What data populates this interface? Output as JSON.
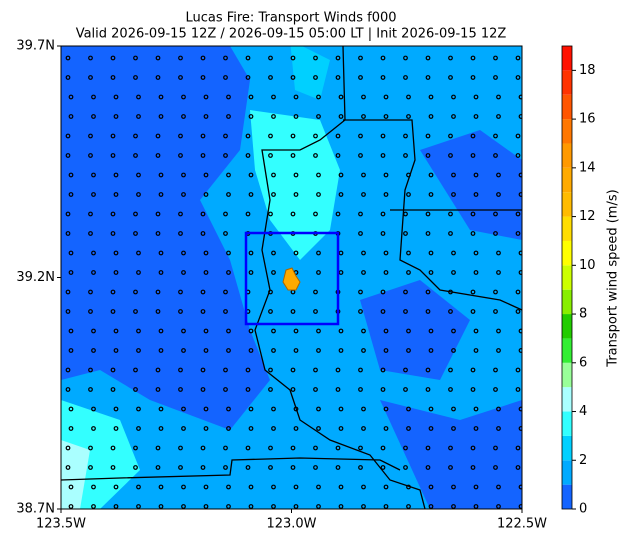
{
  "title": "Lucas Fire: Transport Winds f000",
  "subtitle": "Valid 2026-09-15 12Z / 2026-09-15 05:00 LT | Init 2026-09-15 12Z",
  "map": {
    "xlim": [
      -123.5,
      -122.5
    ],
    "ylim": [
      38.7,
      39.7
    ],
    "xticks": [
      {
        "value": -123.5,
        "label": "123.5W"
      },
      {
        "value": -123.0,
        "label": "123.0W"
      },
      {
        "value": -122.5,
        "label": "122.5W"
      }
    ],
    "yticks": [
      {
        "value": 38.7,
        "label": "38.7N"
      },
      {
        "value": 39.2,
        "label": "39.2N"
      },
      {
        "value": 39.7,
        "label": "39.7N"
      }
    ]
  },
  "colorbar": {
    "label": "Transport wind speed (m/s)",
    "lim": [
      0,
      19
    ],
    "ticks": [
      0,
      2,
      4,
      6,
      8,
      10,
      12,
      14,
      16,
      18
    ],
    "levels": [
      0,
      1,
      2,
      3,
      4,
      5,
      6,
      7,
      8,
      9,
      10,
      11,
      12,
      13,
      14,
      15,
      16,
      17,
      18,
      19
    ],
    "colors": [
      "#1464ff",
      "#00aaff",
      "#00d0ff",
      "#33ffff",
      "#aaffff",
      "#99ff99",
      "#33ee33",
      "#22cc00",
      "#88ee00",
      "#ccff00",
      "#ffff00",
      "#ffdd00",
      "#ffbb00",
      "#ffaa00",
      "#ff9900",
      "#ff7700",
      "#ff5500",
      "#ff3300",
      "#ff1100"
    ]
  }
}
